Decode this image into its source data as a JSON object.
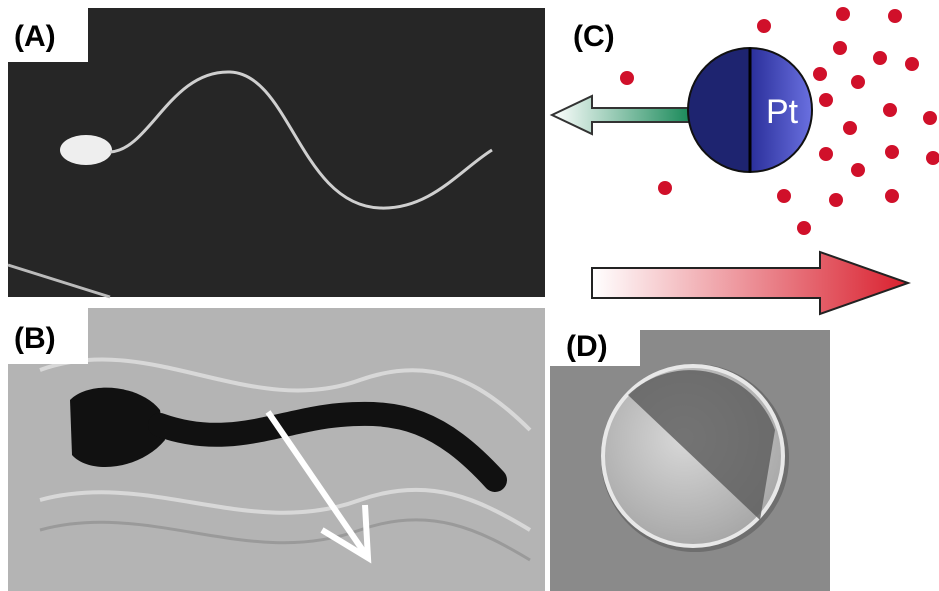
{
  "panels": [
    {
      "label": "(A)"
    },
    {
      "label": "(B)"
    },
    {
      "label": "(C)"
    },
    {
      "label": "(D)"
    }
  ],
  "particle_label": "Pt"
}
